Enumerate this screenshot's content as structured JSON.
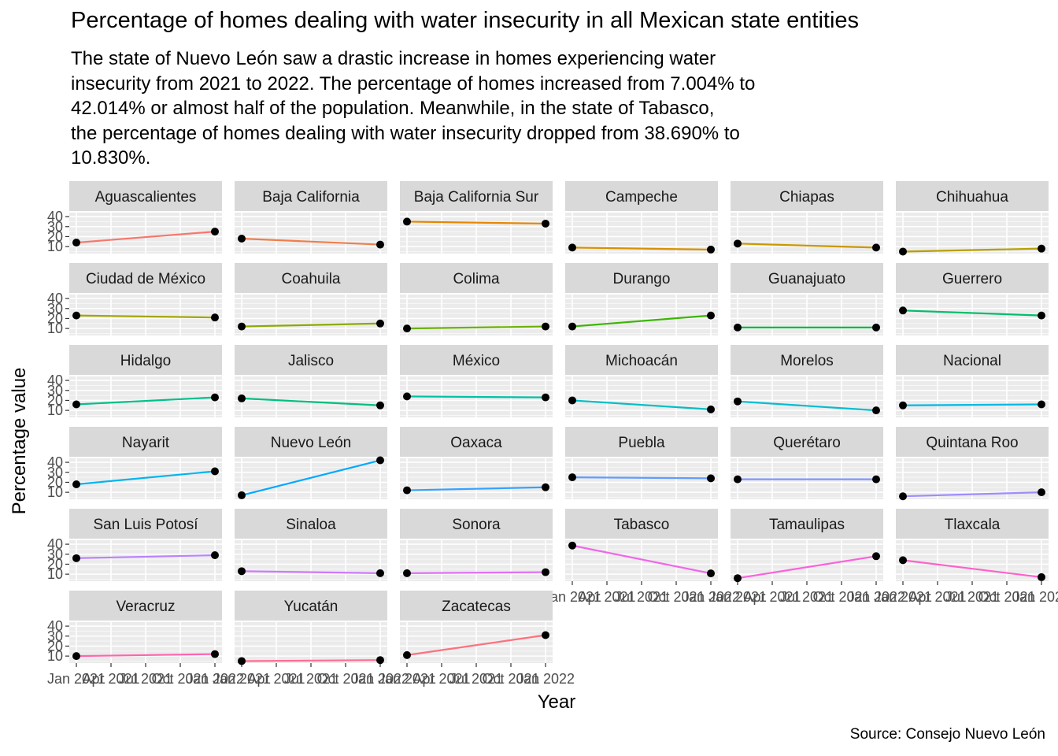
{
  "title": "Percentage of homes dealing with water insecurity in all Mexican state entities",
  "subtitle": "The state of Nuevo León saw a drastic increase in homes experiencing water\ninsecurity from 2021 to 2022. The percentage of homes increased from 7.004% to\n42.014% or almost half of the population. Meanwhile, in the state of Tabasco,\nthe percentage of homes dealing with water insecurity dropped from 38.690% to\n10.830%.",
  "caption": "Source: Consejo Nuevo León",
  "chart_data": {
    "type": "line",
    "faceted": true,
    "xlabel": "Year",
    "ylabel": "Percentage value",
    "x": [
      "2021",
      "2022"
    ],
    "x_tick_labels": [
      "Jan 2021",
      "Apr 2021",
      "Jul 2021",
      "Oct 2021",
      "Jan 2022"
    ],
    "y_ticks": [
      10,
      20,
      30,
      40
    ],
    "ylim": [
      3,
      44
    ],
    "grid": true,
    "legend": "none",
    "facet_columns": 6,
    "series": [
      {
        "name": "Aguascalientes",
        "values": [
          14,
          25
        ],
        "color": "#F8766D"
      },
      {
        "name": "Baja California",
        "values": [
          18,
          12
        ],
        "color": "#F07E4B"
      },
      {
        "name": "Baja California Sur",
        "values": [
          35,
          33
        ],
        "color": "#E58700"
      },
      {
        "name": "Campeche",
        "values": [
          9,
          7
        ],
        "color": "#D89000"
      },
      {
        "name": "Chiapas",
        "values": [
          13,
          9
        ],
        "color": "#C99800"
      },
      {
        "name": "Chihuahua",
        "values": [
          5,
          8
        ],
        "color": "#B79F00"
      },
      {
        "name": "Ciudad de México",
        "values": [
          23,
          21
        ],
        "color": "#A3A500"
      },
      {
        "name": "Coahuila",
        "values": [
          12,
          15
        ],
        "color": "#8AAB00"
      },
      {
        "name": "Colima",
        "values": [
          10,
          12
        ],
        "color": "#6BB100"
      },
      {
        "name": "Durango",
        "values": [
          12,
          23
        ],
        "color": "#39B600"
      },
      {
        "name": "Guanajuato",
        "values": [
          11,
          11
        ],
        "color": "#00BA38"
      },
      {
        "name": "Guerrero",
        "values": [
          28,
          23
        ],
        "color": "#00BE6C"
      },
      {
        "name": "Hidalgo",
        "values": [
          16,
          23
        ],
        "color": "#00C08B"
      },
      {
        "name": "Jalisco",
        "values": [
          22,
          15
        ],
        "color": "#00BF7D"
      },
      {
        "name": "México",
        "values": [
          24,
          23
        ],
        "color": "#00C1A7"
      },
      {
        "name": "Michoacán",
        "values": [
          20,
          11
        ],
        "color": "#00BFC4"
      },
      {
        "name": "Morelos",
        "values": [
          19,
          10
        ],
        "color": "#00BDD0"
      },
      {
        "name": "Nacional",
        "values": [
          15,
          16
        ],
        "color": "#00B9E3"
      },
      {
        "name": "Nayarit",
        "values": [
          18,
          31
        ],
        "color": "#00B4EF"
      },
      {
        "name": "Nuevo León",
        "values": [
          7.004,
          42.014
        ],
        "color": "#00A9FF"
      },
      {
        "name": "Oaxaca",
        "values": [
          12,
          15
        ],
        "color": "#35A2FF"
      },
      {
        "name": "Puebla",
        "values": [
          25,
          24
        ],
        "color": "#619CFF"
      },
      {
        "name": "Querétaro",
        "values": [
          23,
          23
        ],
        "color": "#7F96FF"
      },
      {
        "name": "Quintana Roo",
        "values": [
          6,
          10
        ],
        "color": "#9F8CFF"
      },
      {
        "name": "San Luis Potosí",
        "values": [
          26,
          29
        ],
        "color": "#B983FF"
      },
      {
        "name": "Sinaloa",
        "values": [
          13,
          11
        ],
        "color": "#CF78FF"
      },
      {
        "name": "Sonora",
        "values": [
          11,
          12
        ],
        "color": "#E26EF7"
      },
      {
        "name": "Tabasco",
        "values": [
          38.69,
          10.83
        ],
        "color": "#F066EA"
      },
      {
        "name": "Tamaulipas",
        "values": [
          6,
          28
        ],
        "color": "#FA62DB"
      },
      {
        "name": "Tlaxcala",
        "values": [
          24,
          7
        ],
        "color": "#FF61C9"
      },
      {
        "name": "Veracruz",
        "values": [
          10,
          12
        ],
        "color": "#FF65AE"
      },
      {
        "name": "Yucatán",
        "values": [
          5,
          6
        ],
        "color": "#FF6C91"
      },
      {
        "name": "Zacatecas",
        "values": [
          11,
          31
        ],
        "color": "#FC717F"
      }
    ]
  }
}
